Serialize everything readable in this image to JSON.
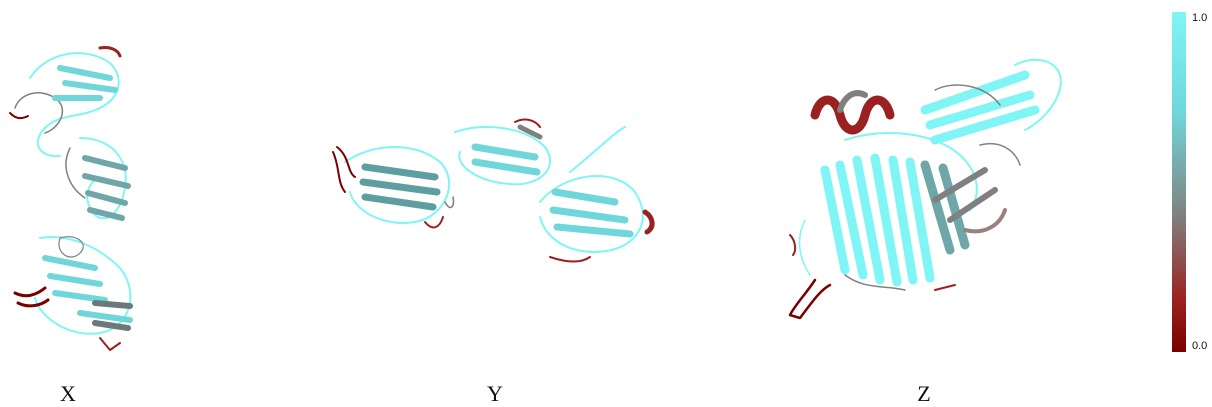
{
  "panels": [
    {
      "label": "X"
    },
    {
      "label": "Y"
    },
    {
      "label": "Z"
    }
  ],
  "colorbar": {
    "max_label": "1.0",
    "min_label": "0.0",
    "colors": [
      "#7ff5f5",
      "#6fd6da",
      "#808080",
      "#9b2020",
      "#7a0000"
    ]
  },
  "colors": {
    "high_confidence": "#7ff5f5",
    "mid_confidence": "#7a8c8c",
    "low_confidence": "#7a0000"
  }
}
